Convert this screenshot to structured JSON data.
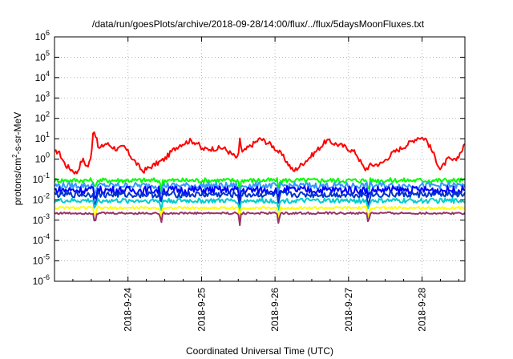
{
  "chart_data": {
    "type": "line",
    "title": "/data/run/goesPlots/archive/2018-09-28/14:00/flux/../flux/5daysMoonFluxes.txt",
    "xlabel": "Coordinated Universal Time (UTC)",
    "ylabel": {
      "pre": "protons/cm",
      "sup": "2",
      "post": "-s-sr-MeV"
    },
    "x_range_days": [
      "2018-09-23 00:00",
      "2018-09-28 14:00"
    ],
    "x_ticks": [
      "2018-9-24",
      "2018-9-25",
      "2018-9-26",
      "2018-9-27",
      "2018-9-28"
    ],
    "y_scale": "log",
    "y_ticks": [
      {
        "base": "10",
        "exp": "-6"
      },
      {
        "base": "10",
        "exp": "-5"
      },
      {
        "base": "10",
        "exp": "-4"
      },
      {
        "base": "10",
        "exp": "-3"
      },
      {
        "base": "10",
        "exp": "-2"
      },
      {
        "base": "10",
        "exp": "-1"
      },
      {
        "base": "10",
        "exp": "0"
      },
      {
        "base": "10",
        "exp": "1"
      },
      {
        "base": "10",
        "exp": "2"
      },
      {
        "base": "10",
        "exp": "3"
      },
      {
        "base": "10",
        "exp": "4"
      },
      {
        "base": "10",
        "exp": "5"
      },
      {
        "base": "10",
        "exp": "6"
      }
    ],
    "ylim": [
      1e-06,
      1000000
    ],
    "grid": true,
    "legend": "none",
    "series": [
      {
        "color": "#ff0000",
        "level": 1.5,
        "noise": 0.25,
        "shape": "red"
      },
      {
        "color": "#00ff00",
        "level": 0.09,
        "noise": 0.12
      },
      {
        "color": "#3399ff",
        "level": 0.05,
        "noise": 0.15
      },
      {
        "color": "#0000ff",
        "level": 0.03,
        "noise": 0.2
      },
      {
        "color": "#0033cc",
        "level": 0.018,
        "noise": 0.15
      },
      {
        "color": "#00cccc",
        "level": 0.009,
        "noise": 0.12
      },
      {
        "color": "#ffff00",
        "level": 0.004,
        "noise": 0.06
      },
      {
        "color": "#993366",
        "level": 0.0022,
        "noise": 0.05
      }
    ]
  }
}
